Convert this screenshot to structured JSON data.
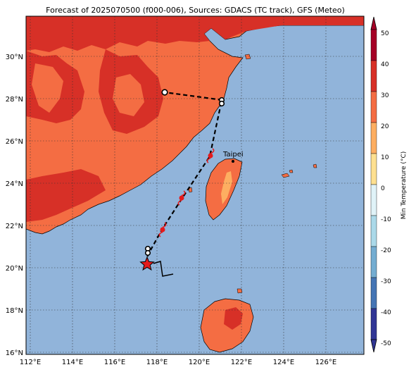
{
  "title": "Forecast of 2025070500 (f000-006), Sources: GDACS (TC track), GFS (Meteo)",
  "map": {
    "lon_range": [
      111.8,
      127.8
    ],
    "lat_range": [
      15.9,
      31.9
    ],
    "lon_ticks": [
      "112°E",
      "114°E",
      "116°E",
      "118°E",
      "120°E",
      "122°E",
      "124°E",
      "126°E"
    ],
    "lat_ticks": [
      "16°N",
      "18°N",
      "20°N",
      "22°N",
      "24°N",
      "26°N",
      "28°N",
      "30°N"
    ],
    "gridlines": "dotted",
    "ocean_color": "#91b4da",
    "land_color_main": "#f46d43",
    "land_color_hot": "#d73027",
    "land_color_warm": "#fdae61"
  },
  "city": {
    "name": "Taipei",
    "lon": 121.5,
    "lat": 25.05
  },
  "track": {
    "current_position": {
      "lon": 117.5,
      "lat": 20.2,
      "marker": "star"
    },
    "past_track": [
      [
        117.5,
        20.2
      ],
      [
        118.0,
        20.3
      ],
      [
        118.2,
        19.6
      ],
      [
        118.7,
        19.7
      ]
    ],
    "forecast_track": [
      [
        117.5,
        20.2
      ],
      [
        118.2,
        21.8
      ],
      [
        119.1,
        23.3
      ],
      [
        120.5,
        25.3
      ],
      [
        121.0,
        27.9
      ],
      [
        118.3,
        28.3
      ]
    ],
    "storm_symbols": [
      {
        "lon": 118.2,
        "lat": 21.8,
        "color": "red"
      },
      {
        "lon": 119.1,
        "lat": 23.3,
        "color": "red"
      },
      {
        "lon": 120.5,
        "lat": 25.3,
        "color": "red"
      }
    ],
    "open_circles": [
      [
        117.5,
        20.75
      ],
      [
        117.5,
        20.9
      ],
      [
        121.0,
        28.0
      ],
      [
        121.0,
        27.8
      ],
      [
        118.3,
        28.3
      ]
    ]
  },
  "colorbar": {
    "label": "Min Temperature (°C)",
    "ticks": [
      "-50",
      "-40",
      "-30",
      "-20",
      "-10",
      "0",
      "10",
      "20",
      "30",
      "40",
      "50"
    ],
    "colors": [
      "#313695",
      "#4575b4",
      "#74add1",
      "#abd9e9",
      "#e0f3f8",
      "#ffffbf",
      "#fee090",
      "#fdae61",
      "#f46d43",
      "#d73027",
      "#a50026"
    ],
    "extend": "both"
  }
}
